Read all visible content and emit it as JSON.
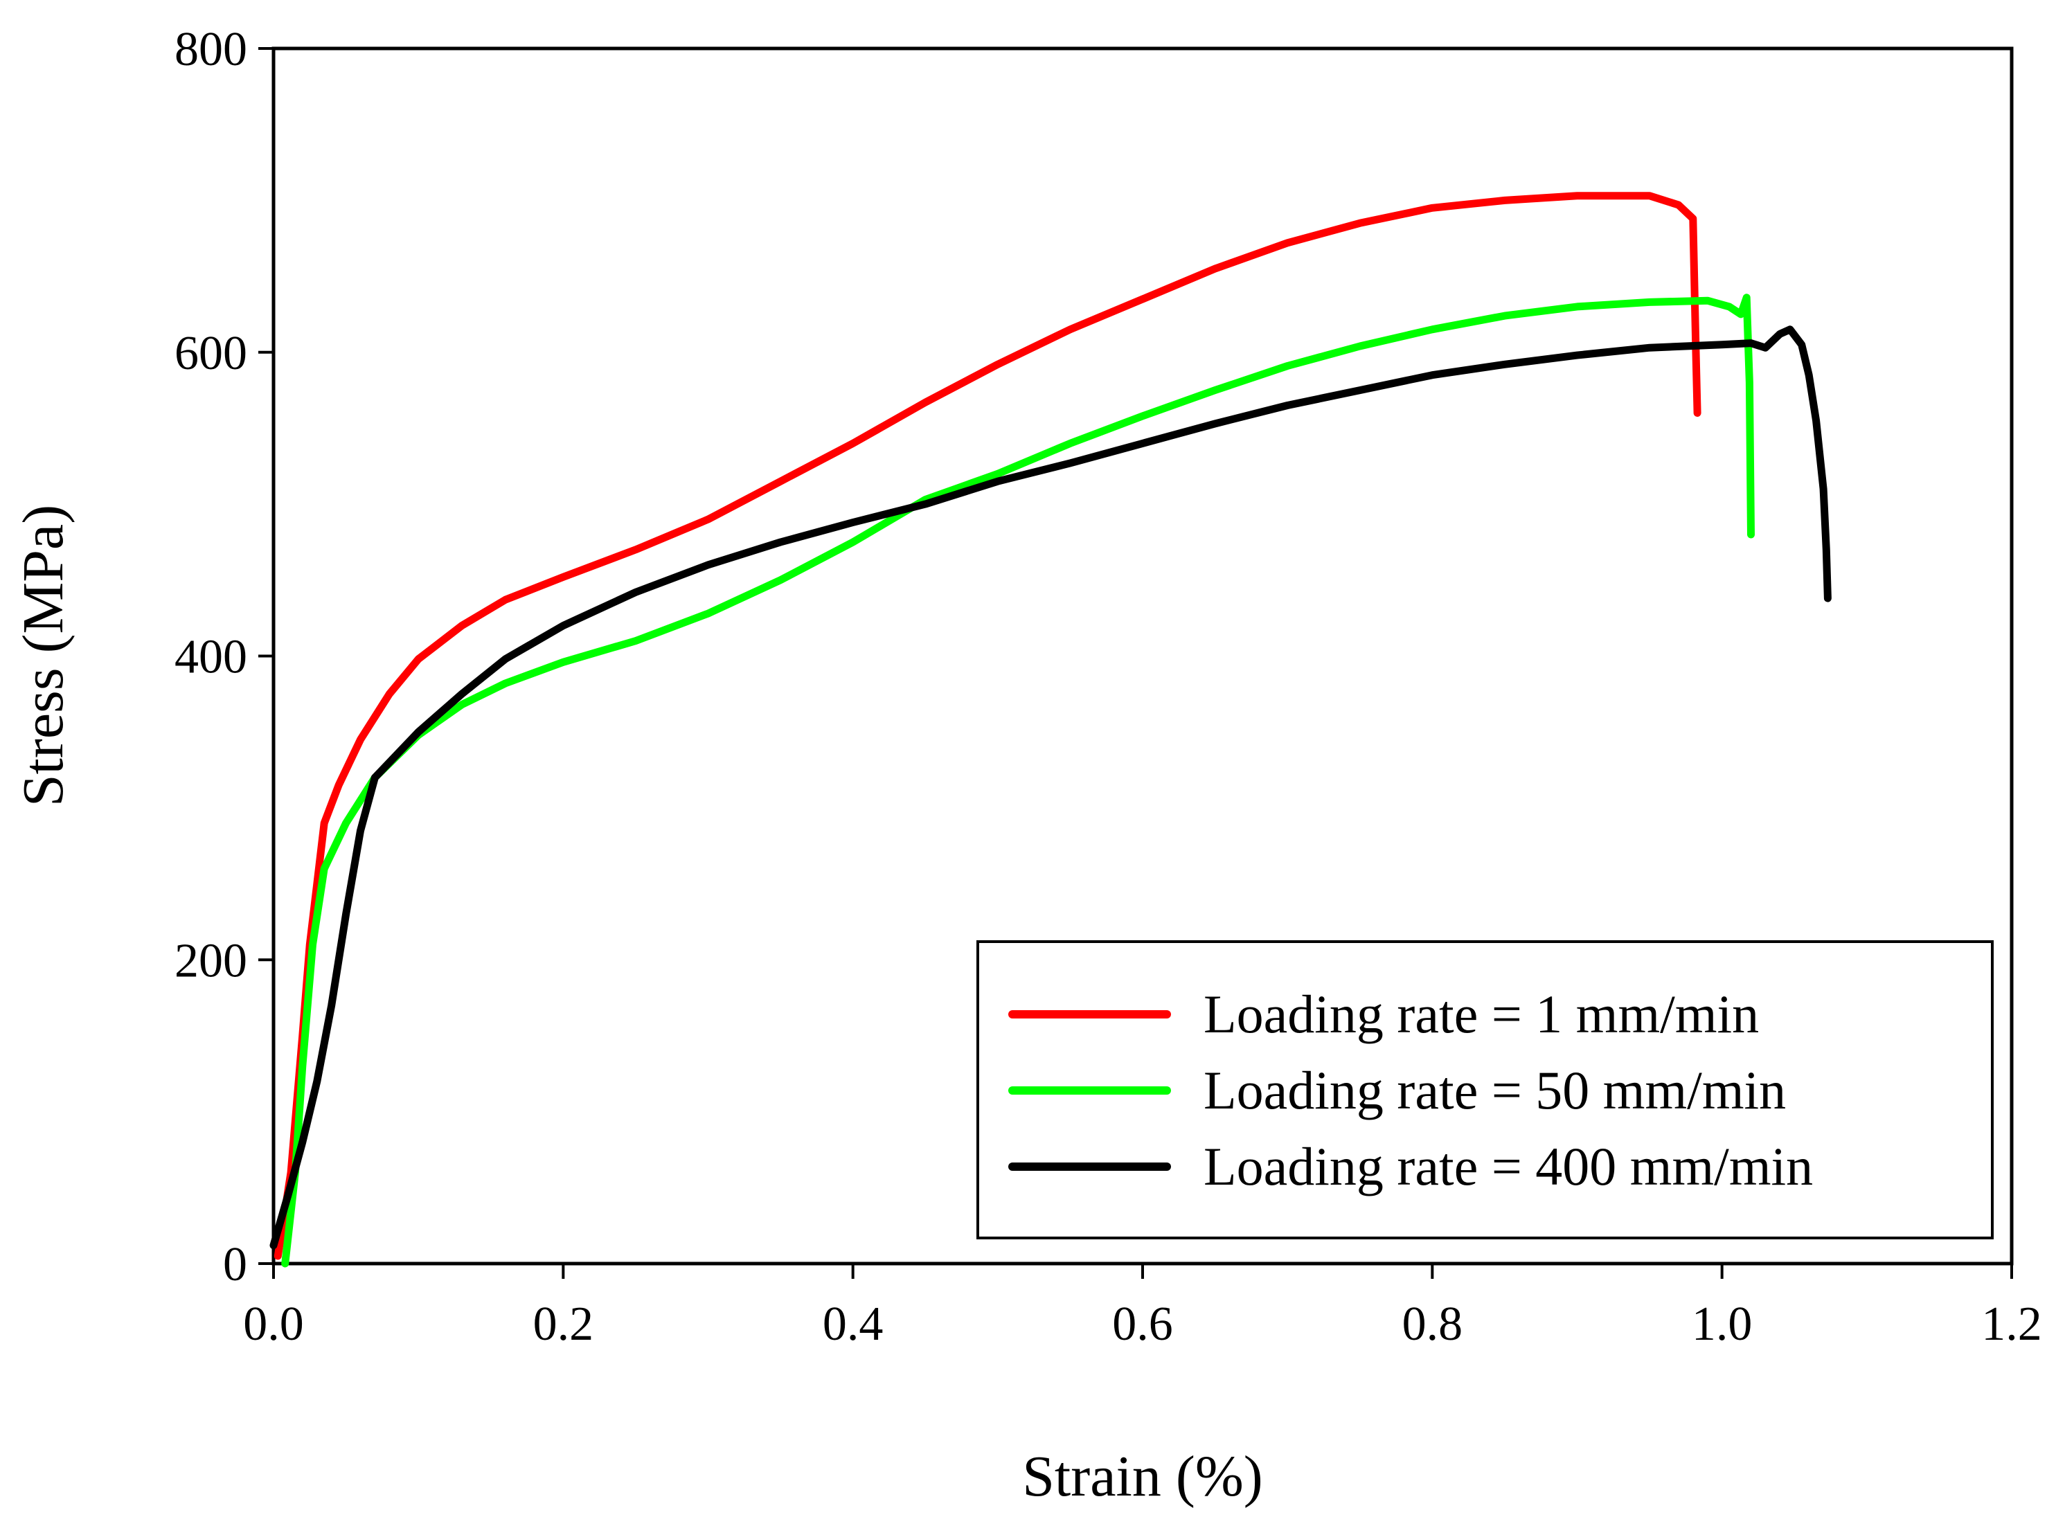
{
  "chart_data": {
    "type": "line",
    "title": "",
    "xlabel": "Strain (%)",
    "ylabel": "Stress (MPa)",
    "xlim": [
      0.0,
      1.2
    ],
    "ylim": [
      0,
      800
    ],
    "x_ticks": [
      "0.0",
      "0.2",
      "0.4",
      "0.6",
      "0.8",
      "1.0",
      "1.2"
    ],
    "y_ticks": [
      "0",
      "200",
      "400",
      "600",
      "800"
    ],
    "grid": false,
    "legend_position": "bottom-right",
    "series": [
      {
        "name": "Loading rate = 1 mm/min",
        "color": "#ff0000",
        "points": [
          [
            0.003,
            5
          ],
          [
            0.012,
            60
          ],
          [
            0.02,
            150
          ],
          [
            0.025,
            210
          ],
          [
            0.03,
            250
          ],
          [
            0.035,
            290
          ],
          [
            0.045,
            315
          ],
          [
            0.06,
            345
          ],
          [
            0.08,
            375
          ],
          [
            0.1,
            398
          ],
          [
            0.13,
            420
          ],
          [
            0.16,
            437
          ],
          [
            0.2,
            452
          ],
          [
            0.25,
            470
          ],
          [
            0.3,
            490
          ],
          [
            0.35,
            515
          ],
          [
            0.4,
            540
          ],
          [
            0.45,
            567
          ],
          [
            0.5,
            592
          ],
          [
            0.55,
            615
          ],
          [
            0.6,
            635
          ],
          [
            0.65,
            655
          ],
          [
            0.7,
            672
          ],
          [
            0.75,
            685
          ],
          [
            0.8,
            695
          ],
          [
            0.85,
            700
          ],
          [
            0.9,
            703
          ],
          [
            0.95,
            703
          ],
          [
            0.97,
            697
          ],
          [
            0.98,
            688
          ],
          [
            0.982,
            600
          ],
          [
            0.983,
            560
          ]
        ]
      },
      {
        "name": "Loading rate = 50 mm/min",
        "color": "#00ff00",
        "points": [
          [
            0.008,
            0
          ],
          [
            0.015,
            60
          ],
          [
            0.02,
            130
          ],
          [
            0.027,
            210
          ],
          [
            0.035,
            260
          ],
          [
            0.05,
            290
          ],
          [
            0.07,
            320
          ],
          [
            0.1,
            348
          ],
          [
            0.13,
            368
          ],
          [
            0.16,
            382
          ],
          [
            0.2,
            396
          ],
          [
            0.25,
            410
          ],
          [
            0.3,
            428
          ],
          [
            0.35,
            450
          ],
          [
            0.4,
            475
          ],
          [
            0.45,
            503
          ],
          [
            0.5,
            520
          ],
          [
            0.55,
            540
          ],
          [
            0.6,
            558
          ],
          [
            0.65,
            575
          ],
          [
            0.7,
            591
          ],
          [
            0.75,
            604
          ],
          [
            0.8,
            615
          ],
          [
            0.85,
            624
          ],
          [
            0.9,
            630
          ],
          [
            0.95,
            633
          ],
          [
            0.99,
            634
          ],
          [
            1.005,
            630
          ],
          [
            1.013,
            625
          ],
          [
            1.017,
            636
          ],
          [
            1.019,
            580
          ],
          [
            1.02,
            480
          ]
        ]
      },
      {
        "name": "Loading rate = 400 mm/min",
        "color": "#000000",
        "points": [
          [
            0.0,
            12
          ],
          [
            0.01,
            45
          ],
          [
            0.02,
            80
          ],
          [
            0.03,
            120
          ],
          [
            0.04,
            170
          ],
          [
            0.05,
            230
          ],
          [
            0.06,
            285
          ],
          [
            0.07,
            320
          ],
          [
            0.1,
            350
          ],
          [
            0.13,
            375
          ],
          [
            0.16,
            398
          ],
          [
            0.2,
            420
          ],
          [
            0.25,
            442
          ],
          [
            0.3,
            460
          ],
          [
            0.35,
            475
          ],
          [
            0.4,
            488
          ],
          [
            0.45,
            500
          ],
          [
            0.5,
            515
          ],
          [
            0.55,
            527
          ],
          [
            0.6,
            540
          ],
          [
            0.65,
            553
          ],
          [
            0.7,
            565
          ],
          [
            0.75,
            575
          ],
          [
            0.8,
            585
          ],
          [
            0.85,
            592
          ],
          [
            0.9,
            598
          ],
          [
            0.95,
            603
          ],
          [
            1.0,
            605
          ],
          [
            1.02,
            606
          ],
          [
            1.03,
            603
          ],
          [
            1.04,
            612
          ],
          [
            1.047,
            615
          ],
          [
            1.055,
            605
          ],
          [
            1.06,
            585
          ],
          [
            1.065,
            555
          ],
          [
            1.07,
            510
          ],
          [
            1.072,
            470
          ],
          [
            1.073,
            438
          ]
        ]
      }
    ]
  }
}
